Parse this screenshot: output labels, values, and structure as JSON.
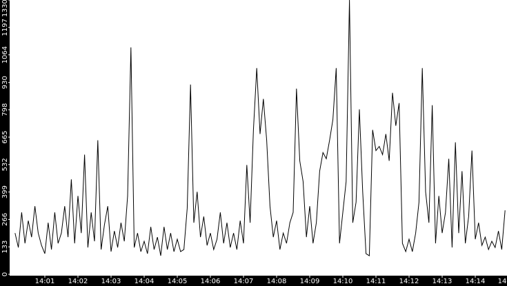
{
  "chart_data": {
    "type": "line",
    "color": "#000000",
    "x": [
      840.1,
      840.2,
      840.3,
      840.4,
      840.5,
      840.6,
      840.7,
      840.8,
      840.9,
      841.0,
      841.1,
      841.2,
      841.3,
      841.4,
      841.5,
      841.6,
      841.7,
      841.8,
      841.9,
      842.0,
      842.1,
      842.2,
      842.3,
      842.4,
      842.5,
      842.6,
      842.7,
      842.8,
      842.9,
      843.0,
      843.1,
      843.2,
      843.3,
      843.4,
      843.5,
      843.6,
      843.7,
      843.8,
      843.9,
      844.0,
      844.1,
      844.2,
      844.3,
      844.4,
      844.5,
      844.6,
      844.7,
      844.8,
      844.9,
      845.0,
      845.1,
      845.2,
      845.3,
      845.4,
      845.5,
      845.6,
      845.7,
      845.8,
      845.9,
      846.0,
      846.1,
      846.2,
      846.3,
      846.4,
      846.5,
      846.6,
      846.7,
      846.8,
      846.9,
      847.0,
      847.1,
      847.2,
      847.3,
      847.4,
      847.5,
      847.6,
      847.7,
      847.8,
      847.9,
      848.0,
      848.1,
      848.2,
      848.3,
      848.4,
      848.5,
      848.6,
      848.7,
      848.8,
      848.9,
      849.0,
      849.1,
      849.2,
      849.3,
      849.4,
      849.5,
      849.6,
      849.7,
      849.8,
      849.9,
      850.0,
      850.1,
      850.2,
      850.3,
      850.4,
      850.5,
      850.6,
      850.7,
      850.8,
      850.9,
      851.0,
      851.1,
      851.2,
      851.3,
      851.4,
      851.5,
      851.6,
      851.7,
      851.8,
      851.9,
      852.0,
      852.1,
      852.2,
      852.3,
      852.4,
      852.5,
      852.6,
      852.7,
      852.8,
      852.9,
      853.0,
      853.1,
      853.2,
      853.3,
      853.4,
      853.5,
      853.6,
      853.7,
      853.8,
      853.9,
      854.0,
      854.1,
      854.2,
      854.3,
      854.4,
      854.5,
      854.6,
      854.7,
      854.8,
      854.9
    ],
    "values": [
      200,
      130,
      300,
      150,
      260,
      180,
      330,
      200,
      140,
      100,
      250,
      120,
      300,
      150,
      200,
      330,
      180,
      460,
      150,
      380,
      200,
      580,
      130,
      300,
      160,
      650,
      120,
      240,
      330,
      110,
      210,
      130,
      250,
      160,
      380,
      1100,
      130,
      200,
      110,
      160,
      100,
      230,
      120,
      180,
      90,
      230,
      120,
      200,
      110,
      170,
      110,
      120,
      320,
      920,
      250,
      400,
      180,
      280,
      140,
      200,
      120,
      170,
      300,
      150,
      250,
      130,
      200,
      120,
      260,
      150,
      530,
      250,
      700,
      1000,
      680,
      850,
      650,
      330,
      180,
      260,
      120,
      200,
      150,
      250,
      300,
      900,
      550,
      450,
      180,
      330,
      150,
      250,
      500,
      590,
      560,
      650,
      750,
      1000,
      150,
      300,
      450,
      1330,
      250,
      350,
      800,
      400,
      100,
      90,
      700,
      600,
      620,
      580,
      680,
      550,
      880,
      720,
      830,
      150,
      110,
      170,
      110,
      200,
      350,
      1000,
      400,
      250,
      820,
      150,
      380,
      200,
      300,
      560,
      130,
      640,
      200,
      500,
      150,
      280,
      600,
      170,
      250,
      140,
      180,
      120,
      160,
      130,
      210,
      120,
      310
    ],
    "xlim": [
      840,
      855
    ],
    "ylim": [
      0,
      1330
    ],
    "yticks": [
      0,
      133,
      266,
      399,
      532,
      665,
      798,
      930,
      1064,
      1197,
      1330
    ],
    "xticks": [
      {
        "value": 841,
        "label": "14:01"
      },
      {
        "value": 842,
        "label": "14:02"
      },
      {
        "value": 843,
        "label": "14:03"
      },
      {
        "value": 844,
        "label": "14:04"
      },
      {
        "value": 845,
        "label": "14:05"
      },
      {
        "value": 846,
        "label": "14:06"
      },
      {
        "value": 847,
        "label": "14:07"
      },
      {
        "value": 848,
        "label": "14:08"
      },
      {
        "value": 849,
        "label": "14:09"
      },
      {
        "value": 850,
        "label": "14:10"
      },
      {
        "value": 851,
        "label": "14:11"
      },
      {
        "value": 852,
        "label": "14:12"
      },
      {
        "value": 853,
        "label": "14:13"
      },
      {
        "value": 854,
        "label": "14:14"
      },
      {
        "value": 855,
        "label": "14"
      }
    ]
  }
}
